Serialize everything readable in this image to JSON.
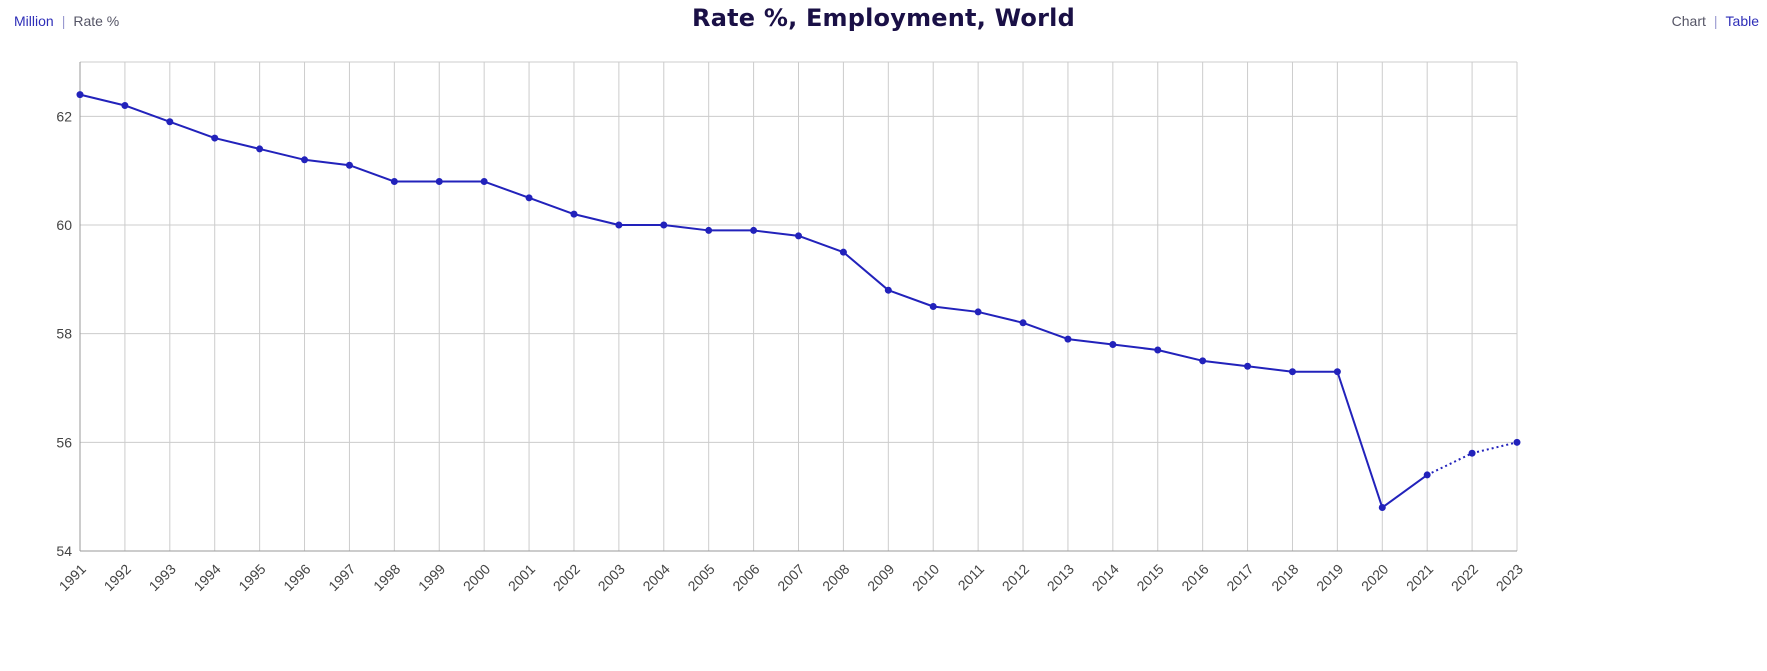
{
  "header": {
    "title": "Rate %, Employment, World",
    "unit_toggle": {
      "million_label": "Million",
      "rate_label": "Rate %",
      "separator": "|"
    },
    "view_toggle": {
      "chart_label": "Chart",
      "table_label": "Table",
      "separator": "|"
    }
  },
  "colors": {
    "series": "#2222bb",
    "grid": "#cccccc",
    "link": "#2e2eb8",
    "title": "#1a1046"
  },
  "chart_data": {
    "type": "line",
    "title": "Rate %, Employment, World",
    "xlabel": "",
    "ylabel": "",
    "ylim": [
      54,
      63
    ],
    "yticks": [
      54,
      56,
      58,
      60,
      62
    ],
    "grid": true,
    "x": [
      "1991",
      "1992",
      "1993",
      "1994",
      "1995",
      "1996",
      "1997",
      "1998",
      "1999",
      "2000",
      "2001",
      "2002",
      "2003",
      "2004",
      "2005",
      "2006",
      "2007",
      "2008",
      "2009",
      "2010",
      "2011",
      "2012",
      "2013",
      "2014",
      "2015",
      "2016",
      "2017",
      "2018",
      "2019",
      "2020",
      "2021",
      "2022",
      "2023"
    ],
    "series": [
      {
        "values": [
          62.4,
          62.2,
          61.9,
          61.6,
          61.4,
          61.2,
          61.1,
          60.8,
          60.8,
          60.8,
          60.5,
          60.2,
          60.0,
          60.0,
          59.9,
          59.9,
          59.8,
          59.5,
          58.8,
          58.5,
          58.4,
          58.2,
          57.9,
          57.8,
          57.7,
          57.5,
          57.4,
          57.3,
          57.3,
          54.8,
          55.4,
          55.8,
          56.0
        ],
        "projection_from": "2021"
      }
    ]
  }
}
